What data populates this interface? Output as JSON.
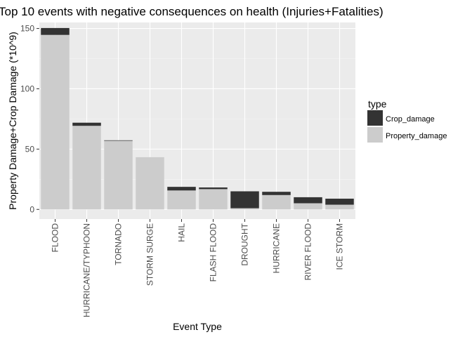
{
  "chart_data": {
    "type": "bar",
    "stacked": true,
    "title": "Top 10 events with negative consequences on health (Injuries+Fatalities)",
    "xlabel": "Event Type",
    "ylabel": "Property Damage+Crop Damage (*10^9)",
    "ylim": [
      -8,
      155
    ],
    "yticks": [
      0,
      50,
      100,
      150
    ],
    "grid": true,
    "legend_position": "right",
    "legend_title": "type",
    "categories": [
      "FLOOD",
      "HURRICANE/TYPHOON",
      "TORNADO",
      "STORM SURGE",
      "HAIL",
      "FLASH FLOOD",
      "DROUGHT",
      "HURRICANE",
      "RIVER FLOOD",
      "ICE STORM"
    ],
    "series": [
      {
        "name": "Property_damage",
        "color": "#cccccc",
        "values": [
          144.7,
          69.3,
          56.9,
          43.3,
          15.7,
          16.8,
          1.0,
          11.9,
          5.1,
          3.9
        ]
      },
      {
        "name": "Crop_damage",
        "color": "#333333",
        "values": [
          5.7,
          2.6,
          0.4,
          0.0,
          3.0,
          1.4,
          14.0,
          2.7,
          5.0,
          5.0
        ]
      }
    ]
  }
}
